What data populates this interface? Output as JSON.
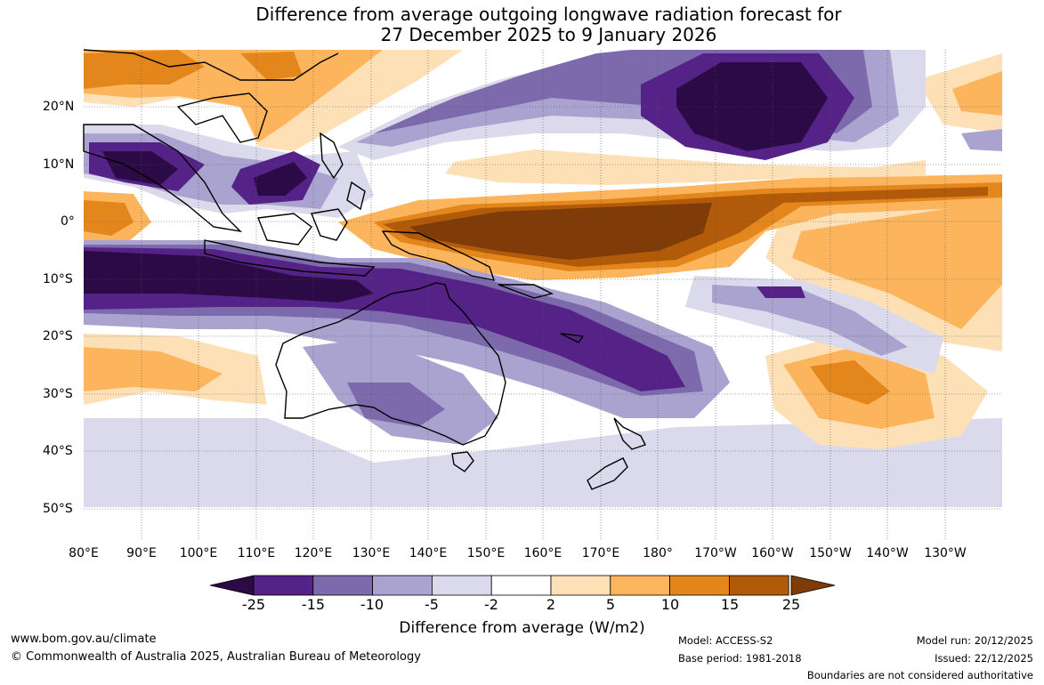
{
  "header": {
    "title_line1": "Difference from average outgoing longwave radiation forecast for",
    "title_line2": "27 December 2025 to 9 January 2026"
  },
  "map": {
    "x_axis_labels": [
      "80°E",
      "90°E",
      "100°E",
      "110°E",
      "120°E",
      "130°E",
      "140°E",
      "150°E",
      "160°E",
      "170°E",
      "180°",
      "170°W",
      "160°W",
      "150°W",
      "140°W",
      "130°W"
    ],
    "y_axis_labels": [
      "20°N",
      "10°N",
      "0°",
      "10°S",
      "20°S",
      "30°S",
      "40°S",
      "50°S"
    ]
  },
  "colorbar": {
    "title": "Difference from average (W/m2)",
    "tick_labels": [
      "-25",
      "-15",
      "-10",
      "-5",
      "-2",
      "2",
      "5",
      "10",
      "15",
      "25"
    ],
    "colors": [
      "#2b0a45",
      "#552288",
      "#7c6aac",
      "#aaa3cf",
      "#dadaec",
      "#ffffff",
      "#fee0b6",
      "#fcb55d",
      "#e3861b",
      "#b05a0a",
      "#7f3b08"
    ]
  },
  "footer": {
    "website": "www.bom.gov.au/climate",
    "copyright": "© Commonwealth of Australia 2025, Australian Bureau of Meteorology",
    "model": "Model: ACCESS-S2",
    "base_period": "Base period: 1981-2018",
    "model_run": "Model run: 20/12/2025",
    "issued": "Issued: 22/12/2025",
    "disclaimer": "Boundaries are not considered authoritative"
  }
}
